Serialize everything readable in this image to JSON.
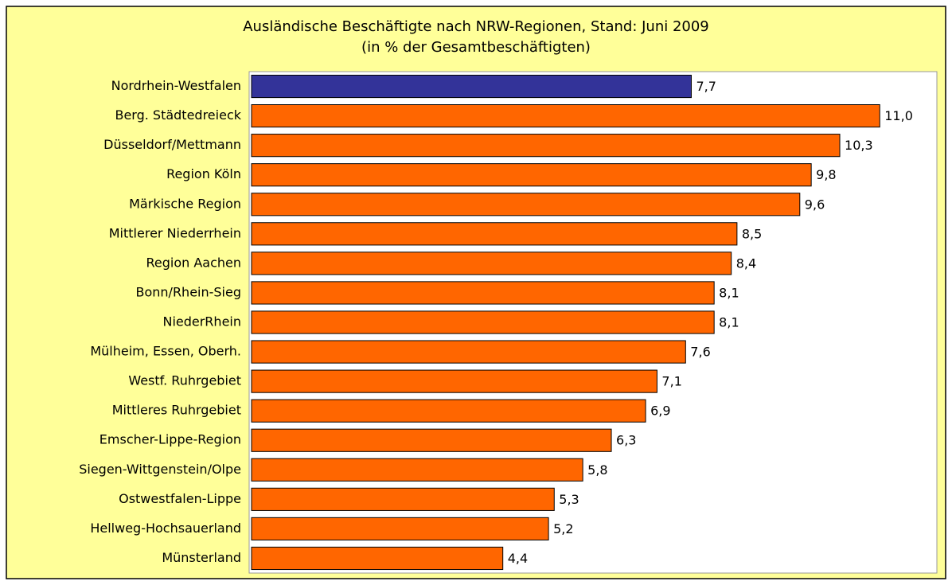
{
  "chart_data": {
    "type": "hbar",
    "title": "Ausländische Beschäftigte nach NRW-Regionen, Stand: Juni 2009",
    "subtitle": "(in % der Gesamtbeschäftigten)",
    "categories": [
      "Nordrhein-Westfalen",
      "Berg. Städtedreieck",
      "Düsseldorf/Mettmann",
      "Region Köln",
      "Märkische Region",
      "Mittlerer Niederrhein",
      "Region Aachen",
      "Bonn/Rhein-Sieg",
      "NiederRhein",
      "Mülheim, Essen, Oberh.",
      "Westf. Ruhrgebiet",
      "Mittleres Ruhrgebiet",
      "Emscher-Lippe-Region",
      "Siegen-Wittgenstein/Olpe",
      "Ostwestfalen-Lippe",
      "Hellweg-Hochsauerland",
      "Münsterland"
    ],
    "values": [
      7.7,
      11.0,
      10.3,
      9.8,
      9.6,
      8.5,
      8.4,
      8.1,
      8.1,
      7.6,
      7.1,
      6.9,
      6.3,
      5.8,
      5.3,
      5.2,
      4.4
    ],
    "value_labels": [
      "7,7",
      "11,0",
      "10,3",
      "9,8",
      "9,6",
      "8,5",
      "8,4",
      "8,1",
      "8,1",
      "7,6",
      "7,1",
      "6,9",
      "6,3",
      "5,8",
      "5,3",
      "5,2",
      "4,4"
    ],
    "colors": [
      "#333399",
      "#FF6600",
      "#FF6600",
      "#FF6600",
      "#FF6600",
      "#FF6600",
      "#FF6600",
      "#FF6600",
      "#FF6600",
      "#FF6600",
      "#FF6600",
      "#FF6600",
      "#FF6600",
      "#FF6600",
      "#FF6600",
      "#FF6600",
      "#FF6600"
    ],
    "xlim": [
      0,
      12
    ]
  }
}
